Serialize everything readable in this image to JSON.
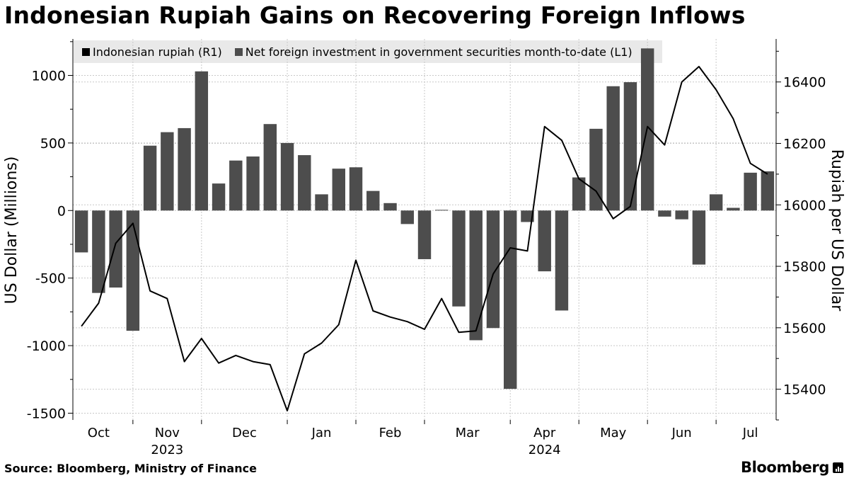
{
  "header": {
    "title": "Indonesian Rupiah Gains on Recovering Foreign Inflows"
  },
  "footer": {
    "source": "Source: Bloomberg, Ministry of Finance",
    "brand": "Bloomberg"
  },
  "colors": {
    "bar": "#4d4d4d",
    "line": "#000000",
    "legend_bg": "#e9e9e9",
    "grid": "#c8c8c8"
  },
  "chart_data": {
    "type": "bar",
    "title": "Indonesian Rupiah Gains on Recovering Foreign Inflows",
    "legend": {
      "position": "top",
      "items": [
        "Indonesian rupiah (R1)",
        "Net foreign investment in government securities month-to-date (L1)"
      ]
    },
    "ylabel": "US Dollar (Millions)",
    "y2label": "Rupiah per US Dollar",
    "ylim": [
      -1550,
      1270
    ],
    "y2lim": [
      15300,
      16540
    ],
    "yticks": [
      1000,
      500,
      0,
      -500,
      -1000,
      -1500
    ],
    "y2ticks": [
      16400,
      16200,
      16000,
      15800,
      15600,
      15400
    ],
    "x_month_labels": [
      "Oct",
      "Nov",
      "Dec",
      "Jan",
      "Feb",
      "Mar",
      "Apr",
      "May",
      "Jun",
      "Jul"
    ],
    "year_labels": [
      "2023",
      "2024"
    ],
    "series": [
      {
        "name": "Net foreign investment in government securities month-to-date (L1)",
        "axis": "left",
        "type": "bar",
        "values": [
          -310,
          -610,
          -570,
          -890,
          480,
          580,
          610,
          1030,
          200,
          370,
          400,
          640,
          500,
          410,
          120,
          310,
          320,
          145,
          55,
          -100,
          -360,
          5,
          -710,
          -960,
          -870,
          -1320,
          -85,
          -450,
          -740,
          245,
          605,
          920,
          950,
          1200,
          -45,
          -65,
          -400,
          120,
          20,
          280,
          290
        ]
      },
      {
        "name": "Indonesian rupiah (R1)",
        "axis": "right",
        "type": "line",
        "values": [
          15605,
          15680,
          15875,
          15940,
          15720,
          15695,
          15490,
          15565,
          15485,
          15510,
          15490,
          15480,
          15330,
          15515,
          15550,
          15610,
          15820,
          15655,
          15635,
          15620,
          15595,
          15695,
          15585,
          15590,
          15775,
          15860,
          15850,
          16255,
          16210,
          16085,
          16045,
          15955,
          15995,
          16255,
          16195,
          16400,
          16450,
          16375,
          16280,
          16135,
          16100
        ]
      }
    ]
  }
}
